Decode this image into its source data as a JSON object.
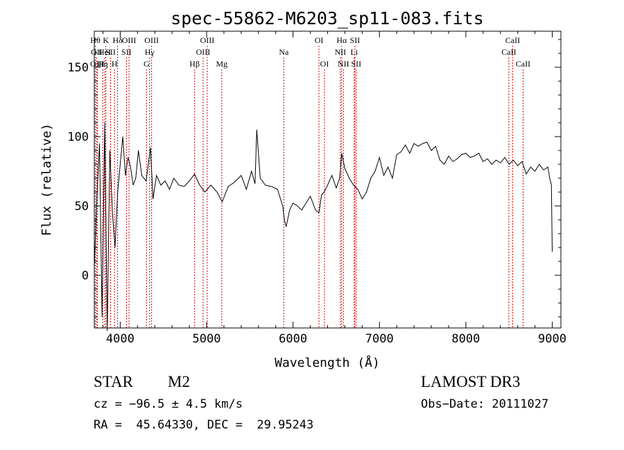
{
  "chart_data": {
    "type": "line",
    "title": "spec-55862-M6203_sp11-083.fits",
    "xlabel": "Wavelength (Å)",
    "ylabel": "Flux (relative)",
    "xlim": [
      3700,
      9100
    ],
    "ylim": [
      -38,
      176
    ],
    "x_ticks": [
      4000,
      5000,
      6000,
      7000,
      8000,
      9000
    ],
    "y_ticks": [
      0,
      50,
      100,
      150
    ],
    "grid": false,
    "line_color": "#000000",
    "marker_color": "#cc0000",
    "spectrum": {
      "x": [
        3700,
        3730,
        3760,
        3790,
        3820,
        3850,
        3880,
        3910,
        3940,
        3970,
        4000,
        4030,
        4060,
        4090,
        4120,
        4150,
        4180,
        4210,
        4250,
        4300,
        4350,
        4380,
        4420,
        4470,
        4520,
        4570,
        4620,
        4680,
        4740,
        4800,
        4860,
        4920,
        4980,
        5050,
        5120,
        5180,
        5250,
        5320,
        5400,
        5460,
        5520,
        5560,
        5580,
        5620,
        5680,
        5750,
        5820,
        5880,
        5900,
        5920,
        5960,
        6000,
        6050,
        6100,
        6150,
        6200,
        6260,
        6300,
        6330,
        6360,
        6400,
        6450,
        6500,
        6540,
        6563,
        6600,
        6650,
        6700,
        6750,
        6800,
        6850,
        6900,
        6950,
        7000,
        7050,
        7100,
        7150,
        7200,
        7250,
        7300,
        7350,
        7400,
        7450,
        7500,
        7550,
        7600,
        7650,
        7700,
        7750,
        7800,
        7850,
        7900,
        7950,
        8000,
        8050,
        8100,
        8150,
        8200,
        8250,
        8300,
        8350,
        8400,
        8450,
        8500,
        8550,
        8600,
        8650,
        8700,
        8750,
        8800,
        8850,
        8900,
        8950,
        8970,
        8990,
        9000
      ],
      "y": [
        5,
        55,
        95,
        -30,
        110,
        -40,
        90,
        45,
        20,
        60,
        80,
        100,
        72,
        85,
        78,
        65,
        70,
        90,
        72,
        68,
        92,
        55,
        72,
        65,
        68,
        62,
        70,
        65,
        64,
        68,
        73,
        65,
        60,
        65,
        60,
        53,
        64,
        67,
        72,
        62,
        75,
        66,
        105,
        70,
        65,
        64,
        62,
        50,
        40,
        35,
        47,
        52,
        50,
        47,
        52,
        57,
        47,
        45,
        58,
        60,
        65,
        72,
        63,
        70,
        88,
        77,
        70,
        65,
        62,
        55,
        60,
        70,
        75,
        85,
        72,
        78,
        70,
        87,
        89,
        94,
        88,
        95,
        93,
        95,
        96,
        90,
        93,
        83,
        80,
        86,
        82,
        84,
        87,
        88,
        85,
        86,
        88,
        82,
        84,
        80,
        83,
        81,
        85,
        80,
        83,
        79,
        82,
        73,
        78,
        75,
        80,
        76,
        78,
        70,
        65,
        17
      ]
    },
    "line_markers": [
      {
        "wl": 3712,
        "label": "Hθ",
        "row": 0
      },
      {
        "wl": 3727,
        "label": "OII",
        "row": 1
      },
      {
        "wl": 3735,
        "label": "OIII",
        "row": 2
      },
      {
        "wl": 3798,
        "label": "Hη",
        "row": 2
      },
      {
        "wl": 3820,
        "label": "HeI",
        "row": 1
      },
      {
        "wl": 3834,
        "label": "K",
        "row": 0
      },
      {
        "wl": 3889,
        "label": "SII",
        "row": 1
      },
      {
        "wl": 3934,
        "label": "H",
        "row": 2
      },
      {
        "wl": 3970,
        "label": "Hδ",
        "row": 0
      },
      {
        "wl": 4072,
        "label": "SII",
        "row": 1
      },
      {
        "wl": 4102,
        "label": "OIII",
        "row": 0
      },
      {
        "wl": 4304,
        "label": "G",
        "row": 2
      },
      {
        "wl": 4340,
        "label": "Hγ",
        "row": 1
      },
      {
        "wl": 4363,
        "label": "OIII",
        "row": 0
      },
      {
        "wl": 4861,
        "label": "Hβ",
        "row": 2
      },
      {
        "wl": 4959,
        "label": "OIII",
        "row": 1
      },
      {
        "wl": 5007,
        "label": "OIII",
        "row": 0
      },
      {
        "wl": 5175,
        "label": "Mg",
        "row": 2
      },
      {
        "wl": 5893,
        "label": "Na",
        "row": 1
      },
      {
        "wl": 6300,
        "label": "OI",
        "row": 0
      },
      {
        "wl": 6364,
        "label": "OI",
        "row": 2
      },
      {
        "wl": 6548,
        "label": "NII",
        "row": 1
      },
      {
        "wl": 6563,
        "label": "Hα",
        "row": 0
      },
      {
        "wl": 6583,
        "label": "NII",
        "row": 2
      },
      {
        "wl": 6708,
        "label": "Li",
        "row": 1
      },
      {
        "wl": 6716,
        "label": "SII",
        "row": 0
      },
      {
        "wl": 6731,
        "label": "SII",
        "row": 2
      },
      {
        "wl": 8498,
        "label": "CaII",
        "row": 1
      },
      {
        "wl": 8542,
        "label": "CaII",
        "row": 0
      },
      {
        "wl": 8662,
        "label": "CaII",
        "row": 2
      }
    ]
  },
  "info": {
    "class": "STAR",
    "subclass": "M2",
    "survey": "LAMOST DR3",
    "cz": "cz = −96.5 ± 4.5 km/s",
    "obs_date": "Obs−Date: 20111027",
    "coords": "RA =  45.64330, DEC =  29.95243"
  }
}
